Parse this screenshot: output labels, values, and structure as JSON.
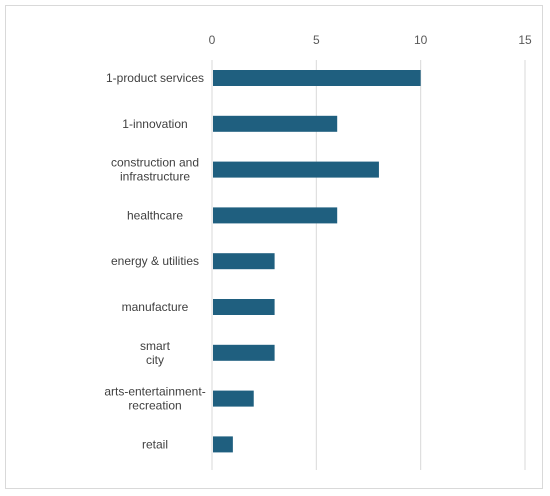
{
  "chart_data": {
    "type": "bar",
    "orientation": "horizontal",
    "title": "",
    "xlabel": "",
    "ylabel": "",
    "xlim": [
      0,
      15
    ],
    "x_ticks": [
      0,
      5,
      10,
      15
    ],
    "x_axis_position": "top",
    "grid": true,
    "legend": "none",
    "bar_color": "#1f5f7f",
    "categories": [
      [
        "1-product services"
      ],
      [
        "1-innovation"
      ],
      [
        "construction and",
        "infrastructure"
      ],
      [
        "healthcare"
      ],
      [
        "energy & utilities"
      ],
      [
        "manufacture"
      ],
      [
        "smart",
        "city"
      ],
      [
        "arts-entertainment-",
        "recreation"
      ],
      [
        "retail"
      ]
    ],
    "values": [
      10,
      6,
      8,
      6,
      3,
      3,
      3,
      2,
      1
    ]
  }
}
